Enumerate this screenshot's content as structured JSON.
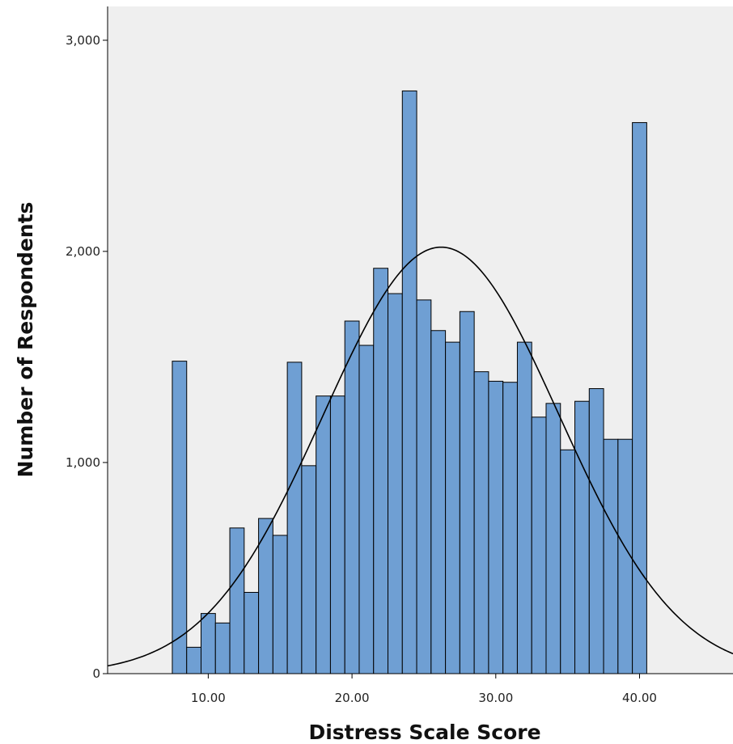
{
  "chart_data": {
    "type": "bar",
    "xlabel": "Distress Scale Score",
    "ylabel": "Number of Respondents",
    "xlim": [
      3,
      46.5
    ],
    "ylim": [
      0,
      3160
    ],
    "x_ticks": [
      10,
      20,
      30,
      40
    ],
    "x_tick_labels": [
      "10.00",
      "20.00",
      "30.00",
      "40.00"
    ],
    "y_ticks": [
      0,
      1000,
      2000,
      3000
    ],
    "y_tick_labels": [
      "0",
      "1,000",
      "2,000",
      "3,000"
    ],
    "bin_width": 1,
    "bins": [
      {
        "x": 8,
        "count": 1480
      },
      {
        "x": 9,
        "count": 125
      },
      {
        "x": 10,
        "count": 285
      },
      {
        "x": 11,
        "count": 240
      },
      {
        "x": 12,
        "count": 690
      },
      {
        "x": 13,
        "count": 385
      },
      {
        "x": 14,
        "count": 735
      },
      {
        "x": 15,
        "count": 655
      },
      {
        "x": 16,
        "count": 1475
      },
      {
        "x": 17,
        "count": 985
      },
      {
        "x": 18,
        "count": 1315
      },
      {
        "x": 19,
        "count": 1315
      },
      {
        "x": 20,
        "count": 1670
      },
      {
        "x": 21,
        "count": 1555
      },
      {
        "x": 22,
        "count": 1920
      },
      {
        "x": 23,
        "count": 1800
      },
      {
        "x": 24,
        "count": 2760
      },
      {
        "x": 25,
        "count": 1770
      },
      {
        "x": 26,
        "count": 1625
      },
      {
        "x": 27,
        "count": 1570
      },
      {
        "x": 28,
        "count": 1715
      },
      {
        "x": 29,
        "count": 1430
      },
      {
        "x": 30,
        "count": 1385
      },
      {
        "x": 31,
        "count": 1380
      },
      {
        "x": 32,
        "count": 1570
      },
      {
        "x": 33,
        "count": 1215
      },
      {
        "x": 34,
        "count": 1280
      },
      {
        "x": 35,
        "count": 1060
      },
      {
        "x": 36,
        "count": 1290
      },
      {
        "x": 37,
        "count": 1350
      },
      {
        "x": 38,
        "count": 1110
      },
      {
        "x": 39,
        "count": 1110
      },
      {
        "x": 40,
        "count": 2610
      }
    ],
    "normal_curve": {
      "mean": 26.2,
      "sd": 8.2,
      "peak": 2020
    },
    "grid": false,
    "colors": {
      "bar_fill": "#6f9fd3",
      "bar_stroke": "#000000",
      "plot_background": "#efefef",
      "curve": "#000000"
    }
  }
}
